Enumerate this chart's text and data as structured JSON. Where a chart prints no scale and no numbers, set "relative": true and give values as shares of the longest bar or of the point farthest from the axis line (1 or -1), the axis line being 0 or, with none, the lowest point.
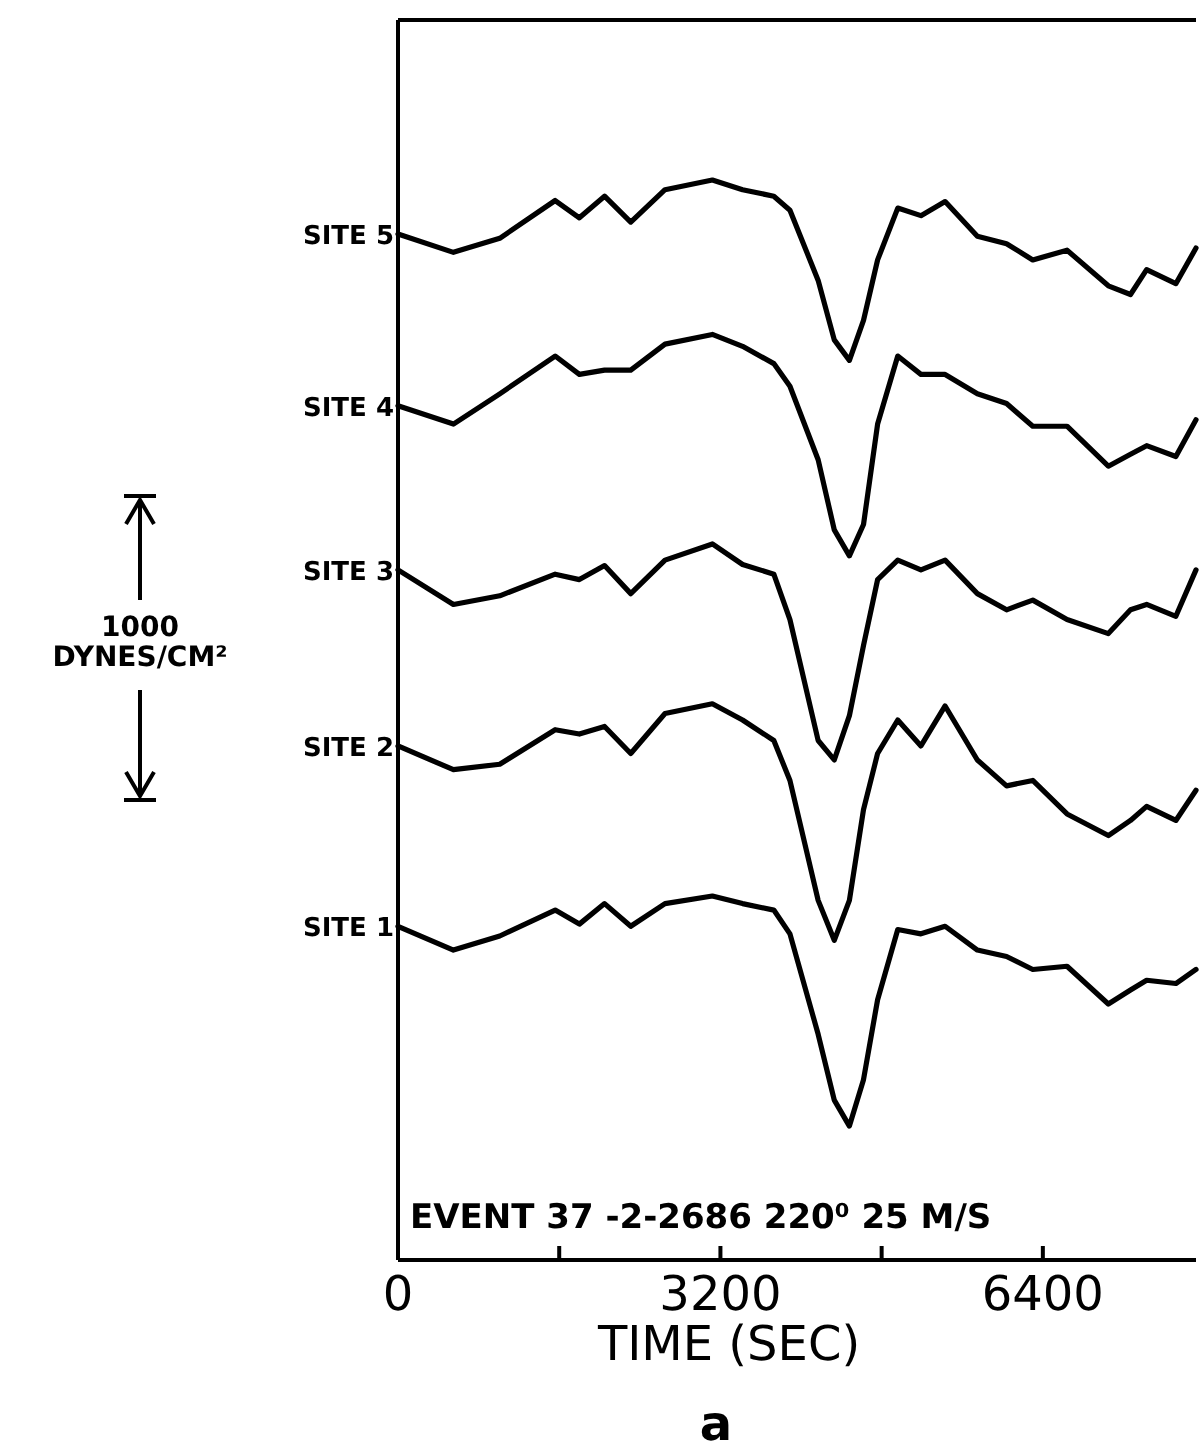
{
  "chart_data": {
    "type": "line",
    "relative": true,
    "xlabel": "TIME (SEC)",
    "x": [
      0,
      550,
      1010,
      1560,
      1800,
      2050,
      2310,
      2650,
      3120,
      3420,
      3730,
      3890,
      4170,
      4330,
      4480,
      4620,
      4760,
      4960,
      5190,
      5430,
      5750,
      6040,
      6300,
      6640,
      7050,
      7270,
      7430,
      7720,
      7920
    ],
    "xlim": [
      0,
      7920
    ],
    "xticks": [
      0,
      {
        "value": 1600,
        "label": null
      },
      3200,
      {
        "value": 4800,
        "label": null
      },
      6400
    ],
    "series": [
      {
        "name": "SITE 5",
        "color": "#000000",
        "values": [
          0.95,
          0.933,
          0.946,
          0.981,
          0.965,
          0.985,
          0.961,
          0.991,
          1,
          0.991,
          0.985,
          0.972,
          0.907,
          0.852,
          0.833,
          0.87,
          0.926,
          0.974,
          0.967,
          0.98,
          0.948,
          0.941,
          0.926,
          0.935,
          0.902,
          0.894,
          0.917,
          0.904,
          0.937
        ]
      },
      {
        "name": "SITE 4",
        "color": "#000000",
        "values": [
          0.791,
          0.774,
          0.802,
          0.837,
          0.82,
          0.824,
          0.824,
          0.848,
          0.857,
          0.846,
          0.83,
          0.809,
          0.741,
          0.676,
          0.652,
          0.681,
          0.774,
          0.837,
          0.82,
          0.82,
          0.802,
          0.793,
          0.772,
          0.772,
          0.735,
          0.746,
          0.754,
          0.744,
          0.778
        ]
      },
      {
        "name": "SITE 3",
        "color": "#000000",
        "values": [
          0.639,
          0.607,
          0.615,
          0.635,
          0.63,
          0.643,
          0.617,
          0.648,
          0.663,
          0.644,
          0.635,
          0.593,
          0.481,
          0.463,
          0.504,
          0.569,
          0.63,
          0.648,
          0.639,
          0.648,
          0.617,
          0.602,
          0.611,
          0.593,
          0.58,
          0.602,
          0.607,
          0.596,
          0.639
        ]
      },
      {
        "name": "SITE 2",
        "color": "#000000",
        "values": [
          0.476,
          0.454,
          0.459,
          0.491,
          0.487,
          0.494,
          0.469,
          0.506,
          0.515,
          0.5,
          0.481,
          0.444,
          0.333,
          0.296,
          0.333,
          0.417,
          0.469,
          0.5,
          0.476,
          0.513,
          0.463,
          0.439,
          0.444,
          0.413,
          0.393,
          0.407,
          0.42,
          0.407,
          0.435
        ]
      },
      {
        "name": "SITE 1",
        "color": "#000000",
        "values": [
          0.309,
          0.287,
          0.3,
          0.324,
          0.311,
          0.33,
          0.309,
          0.33,
          0.337,
          0.33,
          0.324,
          0.302,
          0.209,
          0.148,
          0.124,
          0.167,
          0.241,
          0.306,
          0.302,
          0.309,
          0.287,
          0.281,
          0.269,
          0.272,
          0.237,
          0.25,
          0.259,
          0.256,
          0.269
        ]
      }
    ],
    "annotations": [
      "1000\nDYNES/CM²",
      "EVENT 37 -2-2686 220⁰ 25 M/S",
      "a"
    ]
  }
}
